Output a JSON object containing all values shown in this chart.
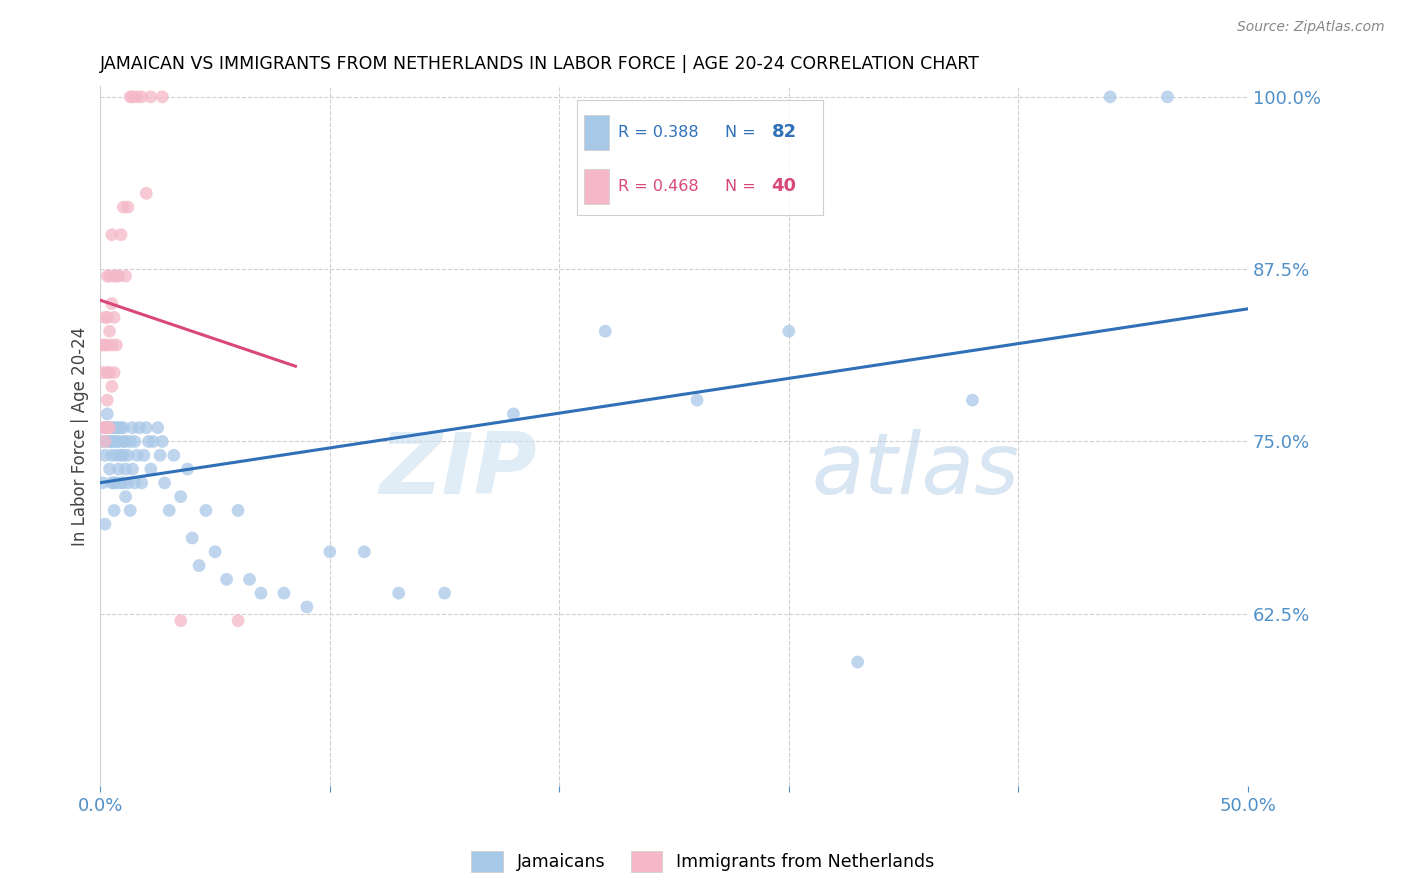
{
  "title": "JAMAICAN VS IMMIGRANTS FROM NETHERLANDS IN LABOR FORCE | AGE 20-24 CORRELATION CHART",
  "source": "Source: ZipAtlas.com",
  "ylabel": "In Labor Force | Age 20-24",
  "x_min": 0.0,
  "x_max": 0.5,
  "y_min": 0.5,
  "y_max": 1.008,
  "blue_R": 0.388,
  "blue_N": 82,
  "pink_R": 0.468,
  "pink_N": 40,
  "blue_color": "#a8c8e8",
  "pink_color": "#f4b8c8",
  "blue_line_color": "#3070b8",
  "pink_line_color": "#d84878",
  "axis_color": "#5090c8",
  "blue_scatter_x": [
    0.001,
    0.001,
    0.002,
    0.002,
    0.002,
    0.003,
    0.003,
    0.003,
    0.004,
    0.004,
    0.004,
    0.005,
    0.005,
    0.005,
    0.005,
    0.006,
    0.006,
    0.006,
    0.006,
    0.007,
    0.007,
    0.007,
    0.007,
    0.008,
    0.008,
    0.008,
    0.009,
    0.009,
    0.009,
    0.01,
    0.01,
    0.01,
    0.01,
    0.011,
    0.011,
    0.011,
    0.012,
    0.012,
    0.013,
    0.013,
    0.014,
    0.014,
    0.015,
    0.015,
    0.016,
    0.017,
    0.018,
    0.019,
    0.02,
    0.021,
    0.022,
    0.023,
    0.025,
    0.026,
    0.027,
    0.028,
    0.03,
    0.032,
    0.035,
    0.038,
    0.04,
    0.043,
    0.046,
    0.05,
    0.055,
    0.06,
    0.065,
    0.07,
    0.08,
    0.09,
    0.1,
    0.115,
    0.13,
    0.15,
    0.18,
    0.22,
    0.26,
    0.3,
    0.33,
    0.38,
    0.44,
    0.465
  ],
  "blue_scatter_y": [
    0.75,
    0.72,
    0.76,
    0.74,
    0.69,
    0.77,
    0.75,
    0.76,
    0.75,
    0.76,
    0.73,
    0.75,
    0.76,
    0.74,
    0.72,
    0.76,
    0.75,
    0.72,
    0.7,
    0.76,
    0.75,
    0.74,
    0.72,
    0.75,
    0.73,
    0.76,
    0.74,
    0.72,
    0.76,
    0.75,
    0.74,
    0.72,
    0.76,
    0.73,
    0.75,
    0.71,
    0.74,
    0.72,
    0.75,
    0.7,
    0.73,
    0.76,
    0.72,
    0.75,
    0.74,
    0.76,
    0.72,
    0.74,
    0.76,
    0.75,
    0.73,
    0.75,
    0.76,
    0.74,
    0.75,
    0.72,
    0.7,
    0.74,
    0.71,
    0.73,
    0.68,
    0.66,
    0.7,
    0.67,
    0.65,
    0.7,
    0.65,
    0.64,
    0.64,
    0.63,
    0.67,
    0.67,
    0.64,
    0.64,
    0.77,
    0.83,
    0.78,
    0.83,
    0.59,
    0.78,
    1.0,
    1.0
  ],
  "pink_scatter_x": [
    0.001,
    0.001,
    0.001,
    0.002,
    0.002,
    0.002,
    0.002,
    0.003,
    0.003,
    0.003,
    0.003,
    0.003,
    0.003,
    0.004,
    0.004,
    0.004,
    0.004,
    0.005,
    0.005,
    0.005,
    0.005,
    0.006,
    0.006,
    0.006,
    0.007,
    0.007,
    0.008,
    0.009,
    0.01,
    0.011,
    0.012,
    0.013,
    0.014,
    0.016,
    0.018,
    0.02,
    0.022,
    0.027,
    0.035,
    0.06
  ],
  "pink_scatter_y": [
    0.76,
    0.8,
    0.82,
    0.75,
    0.76,
    0.82,
    0.84,
    0.76,
    0.78,
    0.8,
    0.82,
    0.84,
    0.87,
    0.76,
    0.8,
    0.83,
    0.87,
    0.79,
    0.82,
    0.85,
    0.9,
    0.8,
    0.84,
    0.87,
    0.82,
    0.87,
    0.87,
    0.9,
    0.92,
    0.87,
    0.92,
    1.0,
    1.0,
    1.0,
    1.0,
    0.93,
    1.0,
    1.0,
    0.62,
    0.62
  ]
}
